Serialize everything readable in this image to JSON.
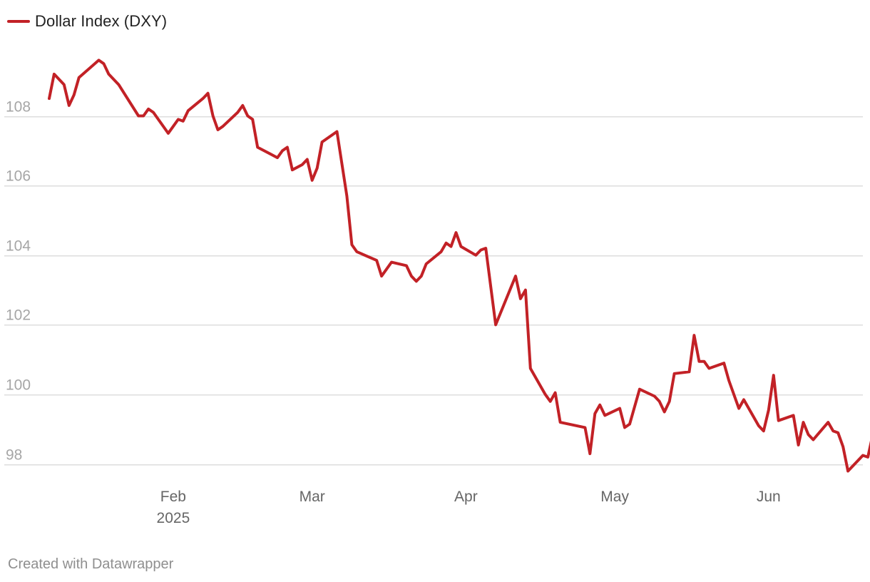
{
  "credit": "Created with Datawrapper",
  "colors": {
    "series": "#c22126",
    "grid": "#dddddd"
  },
  "chart_data": {
    "type": "line",
    "title": "",
    "xlabel": "",
    "ylabel": "",
    "ylim": [
      97.4,
      110.1
    ],
    "grid": "horizontal",
    "legend_position": "top-left",
    "y_ticks": [
      98,
      100,
      102,
      104,
      106,
      108
    ],
    "x_ticks": [
      {
        "date": "2025-02-01",
        "label": "Feb",
        "sublabel": "2025"
      },
      {
        "date": "2025-03-01",
        "label": "Mar",
        "sublabel": ""
      },
      {
        "date": "2025-04-01",
        "label": "Apr",
        "sublabel": ""
      },
      {
        "date": "2025-05-01",
        "label": "May",
        "sublabel": ""
      },
      {
        "date": "2025-06-01",
        "label": "Jun",
        "sublabel": ""
      }
    ],
    "xlim": [
      "2025-01-06",
      "2025-06-20"
    ],
    "series": [
      {
        "name": "Dollar Index (DXY)",
        "points": [
          [
            "2025-01-07",
            108.5
          ],
          [
            "2025-01-08",
            109.2
          ],
          [
            "2025-01-10",
            108.9
          ],
          [
            "2025-01-11",
            108.3
          ],
          [
            "2025-01-12",
            108.6
          ],
          [
            "2025-01-13",
            109.1
          ],
          [
            "2025-01-17",
            109.6
          ],
          [
            "2025-01-18",
            109.5
          ],
          [
            "2025-01-19",
            109.2
          ],
          [
            "2025-01-21",
            108.9
          ],
          [
            "2025-01-25",
            108.0
          ],
          [
            "2025-01-26",
            108.0
          ],
          [
            "2025-01-27",
            108.2
          ],
          [
            "2025-01-28",
            108.1
          ],
          [
            "2025-01-31",
            107.5
          ],
          [
            "2025-02-01",
            107.7
          ],
          [
            "2025-02-02",
            107.9
          ],
          [
            "2025-02-03",
            107.85
          ],
          [
            "2025-02-04",
            108.15
          ],
          [
            "2025-02-07",
            108.5
          ],
          [
            "2025-02-08",
            108.65
          ],
          [
            "2025-02-09",
            108.0
          ],
          [
            "2025-02-10",
            107.6
          ],
          [
            "2025-02-11",
            107.7
          ],
          [
            "2025-02-14",
            108.1
          ],
          [
            "2025-02-15",
            108.3
          ],
          [
            "2025-02-16",
            108.0
          ],
          [
            "2025-02-17",
            107.9
          ],
          [
            "2025-02-18",
            107.1
          ],
          [
            "2025-02-22",
            106.8
          ],
          [
            "2025-02-23",
            107.0
          ],
          [
            "2025-02-24",
            107.1
          ],
          [
            "2025-02-25",
            106.45
          ],
          [
            "2025-02-27",
            106.6
          ],
          [
            "2025-02-28",
            106.75
          ],
          [
            "2025-03-01",
            106.15
          ],
          [
            "2025-03-02",
            106.5
          ],
          [
            "2025-03-03",
            107.25
          ],
          [
            "2025-03-06",
            107.55
          ],
          [
            "2025-03-08",
            105.7
          ],
          [
            "2025-03-09",
            104.3
          ],
          [
            "2025-03-10",
            104.1
          ],
          [
            "2025-03-14",
            103.85
          ],
          [
            "2025-03-15",
            103.4
          ],
          [
            "2025-03-17",
            103.8
          ],
          [
            "2025-03-20",
            103.7
          ],
          [
            "2025-03-21",
            103.4
          ],
          [
            "2025-03-22",
            103.25
          ],
          [
            "2025-03-23",
            103.4
          ],
          [
            "2025-03-24",
            103.75
          ],
          [
            "2025-03-27",
            104.1
          ],
          [
            "2025-03-28",
            104.35
          ],
          [
            "2025-03-29",
            104.25
          ],
          [
            "2025-03-30",
            104.65
          ],
          [
            "2025-03-31",
            104.25
          ],
          [
            "2025-04-03",
            104.0
          ],
          [
            "2025-04-04",
            104.15
          ],
          [
            "2025-04-05",
            104.2
          ],
          [
            "2025-04-07",
            102.0
          ],
          [
            "2025-04-11",
            103.4
          ],
          [
            "2025-04-12",
            102.75
          ],
          [
            "2025-04-13",
            103.0
          ],
          [
            "2025-04-14",
            100.75
          ],
          [
            "2025-04-17",
            100.0
          ],
          [
            "2025-04-18",
            99.8
          ],
          [
            "2025-04-19",
            100.05
          ],
          [
            "2025-04-20",
            99.2
          ],
          [
            "2025-04-25",
            99.05
          ],
          [
            "2025-04-26",
            98.3
          ],
          [
            "2025-04-27",
            99.45
          ],
          [
            "2025-04-28",
            99.7
          ],
          [
            "2025-04-29",
            99.4
          ],
          [
            "2025-05-02",
            99.6
          ],
          [
            "2025-05-03",
            99.05
          ],
          [
            "2025-05-04",
            99.15
          ],
          [
            "2025-05-06",
            100.15
          ],
          [
            "2025-05-09",
            99.95
          ],
          [
            "2025-05-10",
            99.8
          ],
          [
            "2025-05-11",
            99.5
          ],
          [
            "2025-05-12",
            99.8
          ],
          [
            "2025-05-13",
            100.6
          ],
          [
            "2025-05-16",
            100.65
          ],
          [
            "2025-05-17",
            101.7
          ],
          [
            "2025-05-18",
            100.95
          ],
          [
            "2025-05-19",
            100.95
          ],
          [
            "2025-05-20",
            100.75
          ],
          [
            "2025-05-23",
            100.9
          ],
          [
            "2025-05-24",
            100.4
          ],
          [
            "2025-05-26",
            99.6
          ],
          [
            "2025-05-27",
            99.85
          ],
          [
            "2025-05-30",
            99.1
          ],
          [
            "2025-05-31",
            98.95
          ],
          [
            "2025-06-01",
            99.55
          ],
          [
            "2025-06-02",
            100.55
          ],
          [
            "2025-06-03",
            99.25
          ],
          [
            "2025-06-06",
            99.4
          ],
          [
            "2025-06-07",
            98.55
          ],
          [
            "2025-06-08",
            99.2
          ],
          [
            "2025-06-09",
            98.85
          ],
          [
            "2025-06-10",
            98.7
          ],
          [
            "2025-06-13",
            99.2
          ],
          [
            "2025-06-14",
            98.95
          ],
          [
            "2025-06-15",
            98.9
          ],
          [
            "2025-06-16",
            98.5
          ],
          [
            "2025-06-17",
            97.8
          ],
          [
            "2025-06-20",
            98.25
          ],
          [
            "2025-06-21",
            98.2
          ],
          [
            "2025-06-22",
            98.85
          ],
          [
            "2025-06-23",
            98.85
          ]
        ]
      }
    ]
  }
}
